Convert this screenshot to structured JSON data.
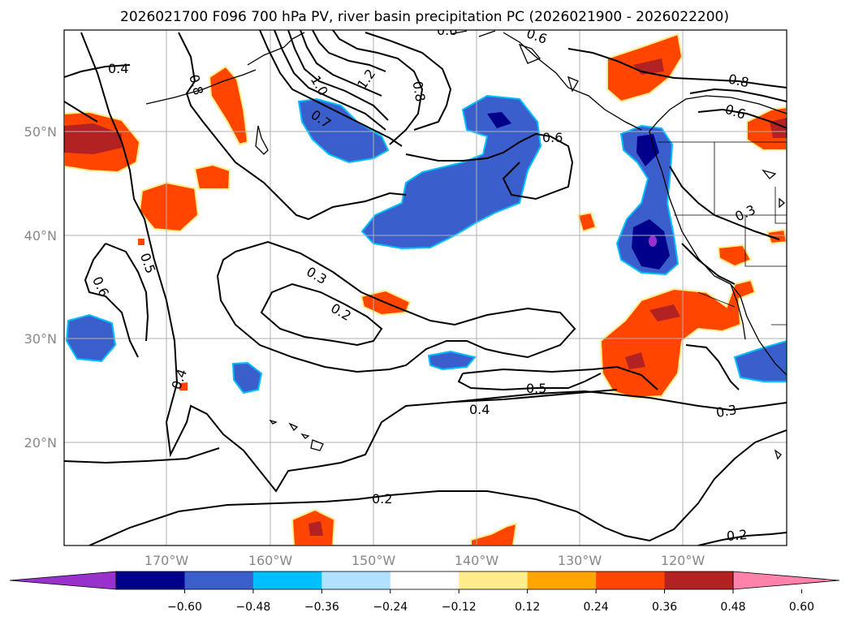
{
  "title": "2026021700 F096 700 hPa PV, river basin precipitation PC (2026021900 - 2026022200)",
  "map": {
    "lat_labels": [
      "50°N",
      "40°N",
      "30°N",
      "20°N"
    ],
    "lon_labels": [
      "170°W",
      "160°W",
      "150°W",
      "140°W",
      "130°W",
      "120°W"
    ],
    "contour_labels": [
      "0.4",
      "0.8",
      "1.0",
      "1.2",
      "0.8",
      "0.6",
      "0.7",
      "0.6",
      "0.8",
      "0.6",
      "0.3",
      "0.5",
      "0.6",
      "0.3",
      "0.2",
      "0.4",
      "0.5",
      "0.4",
      "0.3",
      "0.2",
      "0.2",
      "0.6"
    ]
  },
  "colorbar": {
    "ticks": [
      "−0.60",
      "−0.48",
      "−0.36",
      "−0.24",
      "−0.12",
      "0.12",
      "0.24",
      "0.36",
      "0.48",
      "0.60"
    ],
    "colors": [
      "#9932cc",
      "#00008b",
      "#3a5fcd",
      "#00bfff",
      "#b0e2ff",
      "#ffffff",
      "#ffec8b",
      "#ffa500",
      "#ff4500",
      "#b22222",
      "#ff82ab"
    ]
  }
}
